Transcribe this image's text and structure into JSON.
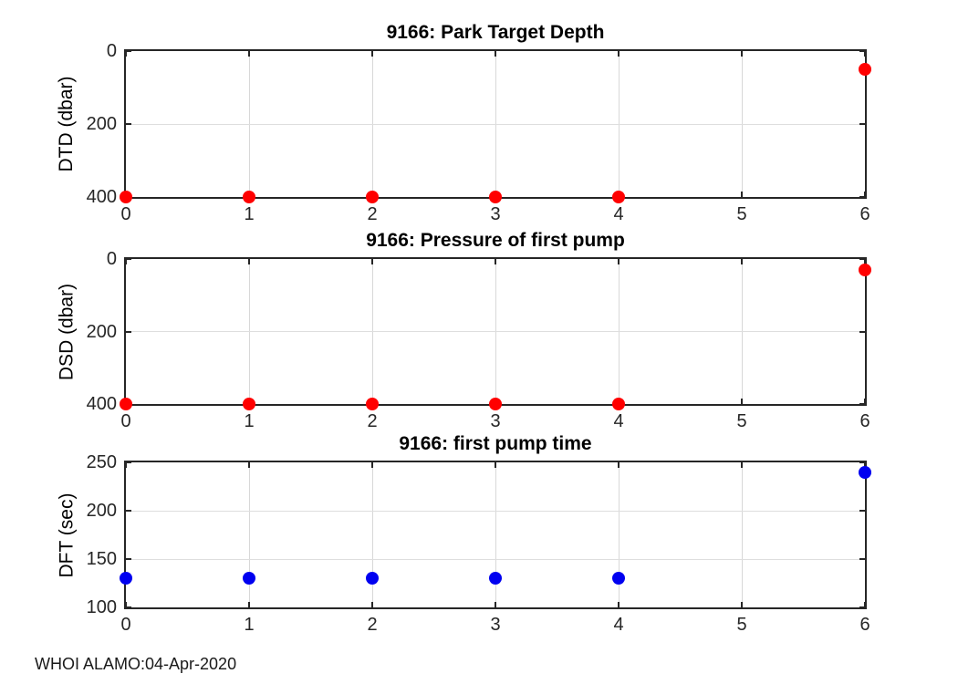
{
  "figure": {
    "footer": "WHOI ALAMO:04-Apr-2020",
    "background": "#ffffff",
    "axis_color": "#262626",
    "grid_color": "#d8d8d8",
    "title_color": "#000000",
    "tick_label_color": "#262626"
  },
  "chart_data": [
    {
      "type": "scatter",
      "title": "9166: Park Target Depth",
      "ylabel": "DTD (dbar)",
      "xlabel": "",
      "x": [
        0,
        1,
        2,
        3,
        4,
        6
      ],
      "y": [
        400,
        400,
        400,
        400,
        400,
        50
      ],
      "xlim": [
        0,
        6
      ],
      "ylim": [
        0,
        400
      ],
      "y_reversed": true,
      "xticks": [
        0,
        1,
        2,
        3,
        4,
        5,
        6
      ],
      "yticks": [
        0,
        200,
        400
      ],
      "marker_color": "#ff0000",
      "marker_size_px": 14,
      "grid": true,
      "legend": null
    },
    {
      "type": "scatter",
      "title": "9166: Pressure of first pump",
      "ylabel": "DSD (dbar)",
      "xlabel": "",
      "x": [
        0,
        1,
        2,
        3,
        4,
        6
      ],
      "y": [
        400,
        400,
        400,
        400,
        400,
        30
      ],
      "xlim": [
        0,
        6
      ],
      "ylim": [
        0,
        400
      ],
      "y_reversed": true,
      "xticks": [
        0,
        1,
        2,
        3,
        4,
        5,
        6
      ],
      "yticks": [
        0,
        200,
        400
      ],
      "marker_color": "#ff0000",
      "marker_size_px": 14,
      "grid": true,
      "legend": null
    },
    {
      "type": "scatter",
      "title": "9166: first pump time",
      "ylabel": "DFT (sec)",
      "xlabel": "",
      "x": [
        0,
        1,
        2,
        3,
        4,
        6
      ],
      "y": [
        130,
        130,
        130,
        130,
        130,
        240
      ],
      "xlim": [
        0,
        6
      ],
      "ylim": [
        100,
        250
      ],
      "y_reversed": false,
      "xticks": [
        0,
        1,
        2,
        3,
        4,
        5,
        6
      ],
      "yticks": [
        100,
        150,
        200,
        250
      ],
      "marker_color": "#0000f0",
      "marker_size_px": 14,
      "grid": true,
      "legend": null
    }
  ]
}
